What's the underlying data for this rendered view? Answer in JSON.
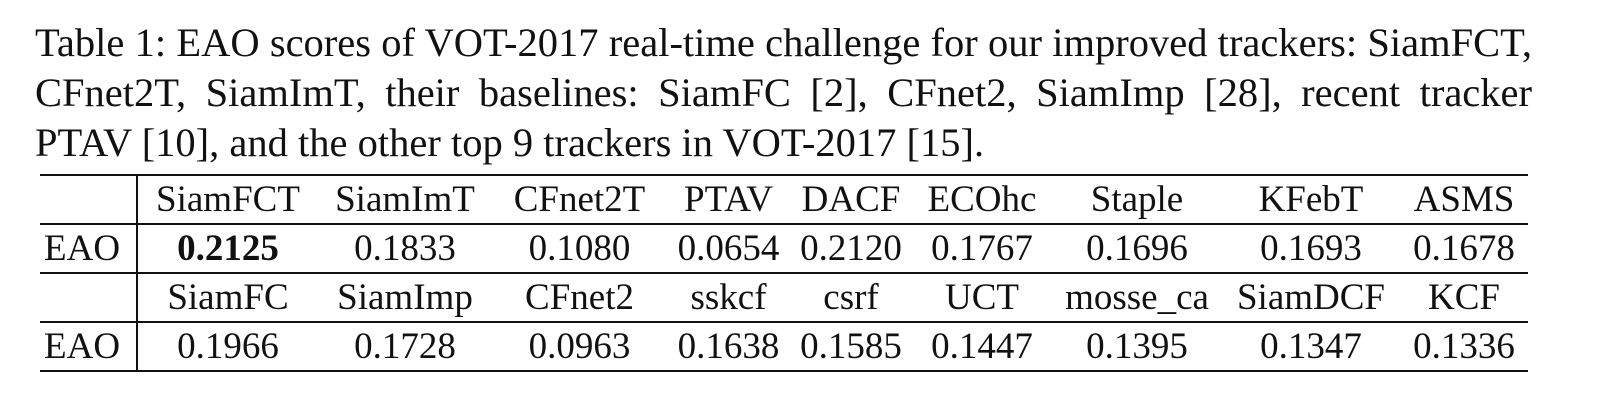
{
  "caption": "Table 1: EAO scores of VOT-2017 real-time challenge for our improved trackers: SiamFCT, CFnet2T, SiamImT, their baselines: SiamFC [2], CFnet2, SiamImp [28], recent tracker PTAV [10], and the other top 9 trackers in VOT-2017 [15].",
  "table": {
    "blocks": [
      {
        "headers": [
          "SiamFCT",
          "SiamImT",
          "CFnet2T",
          "PTAV",
          "DACF",
          "ECOhc",
          "Staple",
          "KFebT",
          "ASMS"
        ],
        "row_label": "EAO",
        "values": [
          "0.2125",
          "0.1833",
          "0.1080",
          "0.0654",
          "0.2120",
          "0.1767",
          "0.1696",
          "0.1693",
          "0.1678"
        ],
        "bold": [
          0
        ]
      },
      {
        "headers": [
          "SiamFC",
          "SiamImp",
          "CFnet2",
          "sskcf",
          "csrf",
          "UCT",
          "mosse_ca",
          "SiamDCF",
          "KCF"
        ],
        "row_label": "EAO",
        "values": [
          "0.1966",
          "0.1728",
          "0.0963",
          "0.1638",
          "0.1585",
          "0.1447",
          "0.1395",
          "0.1347",
          "0.1336"
        ],
        "bold": []
      }
    ]
  }
}
